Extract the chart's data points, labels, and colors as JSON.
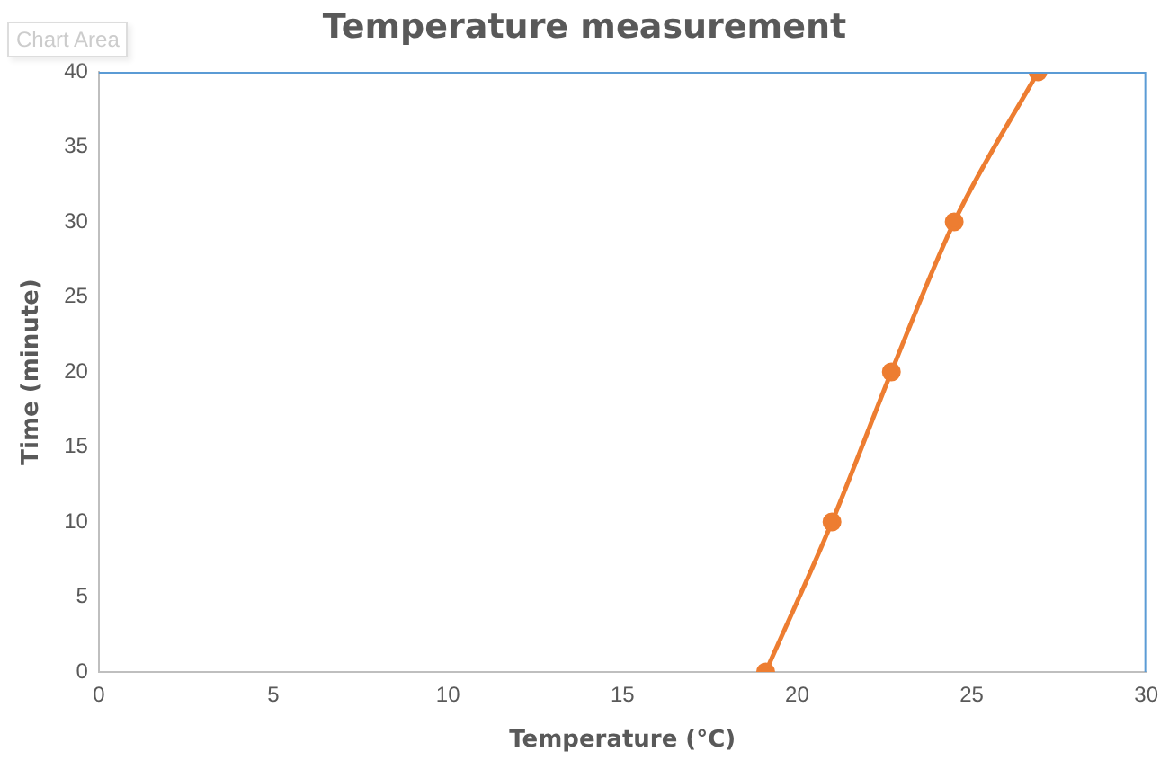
{
  "chart_data": {
    "type": "line",
    "title": "Temperature measurement",
    "xlabel": "Temperature (°C)",
    "ylabel": "Time (minute)",
    "annotations": [
      "Chart Area"
    ],
    "x": [
      19.1,
      21.0,
      22.7,
      24.5,
      26.9
    ],
    "series": [
      {
        "color": "#ed7d31",
        "values": [
          0,
          10,
          20,
          30,
          40
        ]
      }
    ],
    "xlim": [
      0,
      30
    ],
    "xticks": [
      0,
      5,
      10,
      15,
      20,
      25,
      30
    ],
    "ylim": [
      0,
      40
    ],
    "yticks": [
      0,
      5,
      10,
      15,
      20,
      25,
      30,
      35,
      40
    ],
    "grid": false,
    "legend": false,
    "marker": "circle",
    "line_style": "solid"
  }
}
